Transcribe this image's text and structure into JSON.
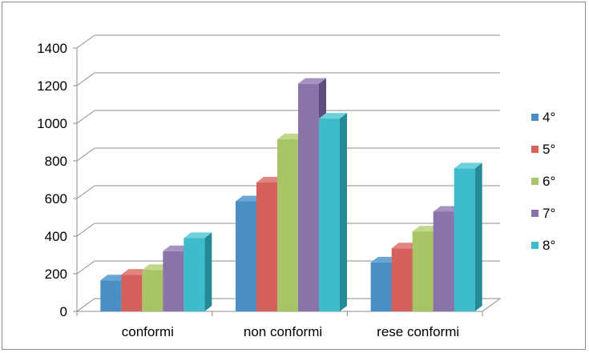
{
  "chart_data": {
    "type": "bar",
    "categories": [
      "conformi",
      "non conformi",
      "rese conformi"
    ],
    "series": [
      {
        "name": "4°",
        "values": [
          165,
          585,
          260
        ],
        "color": "#4a8fc4",
        "side": "#2f6690",
        "top": "#6aa6d4"
      },
      {
        "name": "5°",
        "values": [
          195,
          685,
          335
        ],
        "color": "#d6615c",
        "side": "#a3433f",
        "top": "#e28580"
      },
      {
        "name": "6°",
        "values": [
          220,
          915,
          425
        ],
        "color": "#a9c466",
        "side": "#7c9440",
        "top": "#c0d88a"
      },
      {
        "name": "7°",
        "values": [
          320,
          1210,
          530
        ],
        "color": "#8a73a8",
        "side": "#5f4c7c",
        "top": "#a592bf"
      },
      {
        "name": "8°",
        "values": [
          390,
          1025,
          760
        ],
        "color": "#3ebccb",
        "side": "#248a96",
        "top": "#6dd0dc"
      }
    ],
    "yticks": [
      "0",
      "200",
      "400",
      "600",
      "800",
      "1000",
      "1200",
      "1400"
    ],
    "ylim": [
      0,
      1400
    ],
    "grid": true,
    "legend": "right",
    "style": "3d-clustered-column"
  }
}
